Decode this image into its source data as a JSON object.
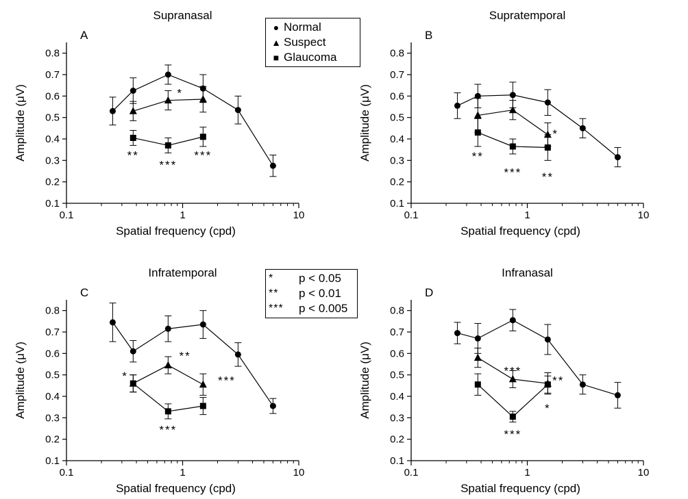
{
  "chart_data": [
    {
      "type": "line",
      "panel_letter": "A",
      "title": "Supranasal",
      "xlabel": "Spatial frequency (cpd)",
      "ylabel": "Amplitude (μV)",
      "xscale": "log",
      "xlim": [
        0.1,
        10
      ],
      "ylim": [
        0.1,
        0.85
      ],
      "xticks": [
        0.1,
        1,
        10
      ],
      "xtick_labels": [
        "0.1",
        "1",
        "10"
      ],
      "yticks": [
        0.1,
        0.2,
        0.3,
        0.4,
        0.5,
        0.6,
        0.7,
        0.8
      ],
      "ytick_labels": [
        "0.1",
        "0.2",
        "0.3",
        "0.4",
        "0.5",
        "0.6",
        "0.7",
        "0.8"
      ],
      "grid": false,
      "series": [
        {
          "name": "Normal",
          "marker": "circle",
          "x": [
            0.25,
            0.375,
            0.75,
            1.5,
            3,
            6
          ],
          "y": [
            0.53,
            0.625,
            0.7,
            0.635,
            0.535,
            0.275
          ],
          "err": [
            0.065,
            0.06,
            0.045,
            0.065,
            0.065,
            0.05
          ]
        },
        {
          "name": "Suspect",
          "marker": "triangle",
          "x": [
            0.375,
            0.75,
            1.5
          ],
          "y": [
            0.53,
            0.58,
            0.585
          ],
          "err": [
            0.045,
            0.045,
            0.06
          ]
        },
        {
          "name": "Glaucoma",
          "marker": "square",
          "x": [
            0.375,
            0.75,
            1.5
          ],
          "y": [
            0.405,
            0.37,
            0.41
          ],
          "err": [
            0.035,
            0.035,
            0.045
          ]
        }
      ],
      "annotations": [
        {
          "text": "*",
          "x": 0.95,
          "y": 0.615
        },
        {
          "text": "**",
          "x": 0.375,
          "y": 0.325
        },
        {
          "text": "***",
          "x": 0.75,
          "y": 0.28
        },
        {
          "text": "***",
          "x": 1.5,
          "y": 0.325
        }
      ]
    },
    {
      "type": "line",
      "panel_letter": "B",
      "title": "Supratemporal",
      "xlabel": "Spatial frequency (cpd)",
      "ylabel": "Amplitude (μV)",
      "xscale": "log",
      "xlim": [
        0.1,
        10
      ],
      "ylim": [
        0.1,
        0.85
      ],
      "xticks": [
        0.1,
        1,
        10
      ],
      "xtick_labels": [
        "0.1",
        "1",
        "10"
      ],
      "yticks": [
        0.1,
        0.2,
        0.3,
        0.4,
        0.5,
        0.6,
        0.7,
        0.8
      ],
      "ytick_labels": [
        "0.1",
        "0.2",
        "0.3",
        "0.4",
        "0.5",
        "0.6",
        "0.7",
        "0.8"
      ],
      "grid": false,
      "series": [
        {
          "name": "Normal",
          "marker": "circle",
          "x": [
            0.25,
            0.375,
            0.75,
            1.5,
            3,
            6
          ],
          "y": [
            0.555,
            0.6,
            0.605,
            0.57,
            0.45,
            0.315
          ],
          "err": [
            0.06,
            0.055,
            0.06,
            0.06,
            0.045,
            0.045
          ]
        },
        {
          "name": "Suspect",
          "marker": "triangle",
          "x": [
            0.375,
            0.75,
            1.5
          ],
          "y": [
            0.51,
            0.535,
            0.42
          ],
          "err": [
            0.08,
            0.045,
            0.055
          ]
        },
        {
          "name": "Glaucoma",
          "marker": "square",
          "x": [
            0.375,
            0.75,
            1.5
          ],
          "y": [
            0.43,
            0.365,
            0.36
          ],
          "err": [
            0.065,
            0.035,
            0.06
          ]
        }
      ],
      "annotations": [
        {
          "text": "*",
          "x": 1.75,
          "y": 0.425
        },
        {
          "text": "**",
          "x": 0.375,
          "y": 0.32
        },
        {
          "text": "***",
          "x": 0.75,
          "y": 0.245
        },
        {
          "text": "**",
          "x": 1.5,
          "y": 0.225
        }
      ]
    },
    {
      "type": "line",
      "panel_letter": "C",
      "title": "Infratemporal",
      "xlabel": "Spatial frequency (cpd)",
      "ylabel": "Amplitude (μV)",
      "xscale": "log",
      "xlim": [
        0.1,
        10
      ],
      "ylim": [
        0.1,
        0.85
      ],
      "xticks": [
        0.1,
        1,
        10
      ],
      "xtick_labels": [
        "0.1",
        "1",
        "10"
      ],
      "yticks": [
        0.1,
        0.2,
        0.3,
        0.4,
        0.5,
        0.6,
        0.7,
        0.8
      ],
      "ytick_labels": [
        "0.1",
        "0.2",
        "0.3",
        "0.4",
        "0.5",
        "0.6",
        "0.7",
        "0.8"
      ],
      "grid": false,
      "series": [
        {
          "name": "Normal",
          "marker": "circle",
          "x": [
            0.25,
            0.375,
            0.75,
            1.5,
            3,
            6
          ],
          "y": [
            0.745,
            0.61,
            0.715,
            0.735,
            0.595,
            0.355
          ],
          "err": [
            0.09,
            0.05,
            0.06,
            0.065,
            0.055,
            0.035
          ]
        },
        {
          "name": "Suspect",
          "marker": "triangle",
          "x": [
            0.375,
            0.75,
            1.5
          ],
          "y": [
            0.46,
            0.545,
            0.455
          ],
          "err": [
            0.04,
            0.04,
            0.05
          ]
        },
        {
          "name": "Glaucoma",
          "marker": "square",
          "x": [
            0.375,
            0.75,
            1.5
          ],
          "y": [
            0.46,
            0.33,
            0.355
          ],
          "err": [
            0.04,
            0.035,
            0.04
          ]
        }
      ],
      "annotations": [
        {
          "text": "**",
          "x": 1.05,
          "y": 0.59
        },
        {
          "text": "*",
          "x": 0.32,
          "y": 0.495
        },
        {
          "text": "***",
          "x": 2.4,
          "y": 0.475
        },
        {
          "text": "***",
          "x": 0.75,
          "y": 0.245
        }
      ]
    },
    {
      "type": "line",
      "panel_letter": "D",
      "title": "Infranasal",
      "xlabel": "Spatial frequency (cpd)",
      "ylabel": "Amplitude (μV)",
      "xscale": "log",
      "xlim": [
        0.1,
        10
      ],
      "ylim": [
        0.1,
        0.85
      ],
      "xticks": [
        0.1,
        1,
        10
      ],
      "xtick_labels": [
        "0.1",
        "1",
        "10"
      ],
      "yticks": [
        0.1,
        0.2,
        0.3,
        0.4,
        0.5,
        0.6,
        0.7,
        0.8
      ],
      "ytick_labels": [
        "0.1",
        "0.2",
        "0.3",
        "0.4",
        "0.5",
        "0.6",
        "0.7",
        "0.8"
      ],
      "grid": false,
      "series": [
        {
          "name": "Normal",
          "marker": "circle",
          "x": [
            0.25,
            0.375,
            0.75,
            1.5,
            3,
            6
          ],
          "y": [
            0.695,
            0.67,
            0.755,
            0.665,
            0.455,
            0.405
          ],
          "err": [
            0.05,
            0.07,
            0.05,
            0.07,
            0.045,
            0.06
          ]
        },
        {
          "name": "Suspect",
          "marker": "triangle",
          "x": [
            0.375,
            0.75,
            1.5
          ],
          "y": [
            0.58,
            0.48,
            0.46
          ],
          "err": [
            0.045,
            0.04,
            0.05
          ]
        },
        {
          "name": "Glaucoma",
          "marker": "square",
          "x": [
            0.375,
            0.75,
            1.5
          ],
          "y": [
            0.455,
            0.305,
            0.455
          ],
          "err": [
            0.05,
            0.025,
            0.04
          ]
        }
      ],
      "annotations": [
        {
          "text": "***",
          "x": 0.75,
          "y": 0.52
        },
        {
          "text": "**",
          "x": 1.85,
          "y": 0.475
        },
        {
          "text": "*",
          "x": 1.5,
          "y": 0.345
        },
        {
          "text": "***",
          "x": 0.75,
          "y": 0.225
        }
      ]
    }
  ],
  "legend_series": {
    "entries": [
      {
        "marker": "circle",
        "label": "Normal"
      },
      {
        "marker": "triangle",
        "label": "Suspect"
      },
      {
        "marker": "square",
        "label": "Glaucoma"
      }
    ]
  },
  "legend_significance": {
    "entries": [
      {
        "stars": "*",
        "label": "p < 0.05"
      },
      {
        "stars": "**",
        "label": "p < 0.01"
      },
      {
        "stars": "***",
        "label": "p < 0.005"
      }
    ]
  }
}
